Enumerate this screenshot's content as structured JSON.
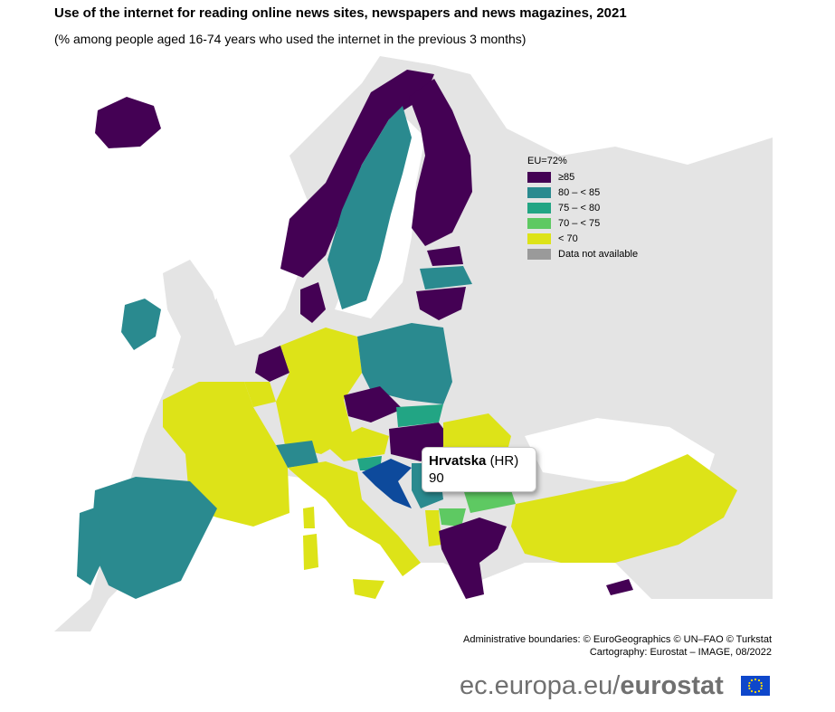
{
  "title": "Use of the internet for reading online news sites, newspapers and news magazines, 2021",
  "subtitle": "(% among people aged 16-74 years who used the internet in the previous 3 months)",
  "legend": {
    "heading": "EU=72%",
    "items": [
      {
        "label": "≥85",
        "color": "#440154"
      },
      {
        "label": "80 – < 85",
        "color": "#2a8a8f"
      },
      {
        "label": "75 – < 80",
        "color": "#22a584"
      },
      {
        "label": "70 – < 75",
        "color": "#5ec962"
      },
      {
        "label": "< 70",
        "color": "#dde318"
      },
      {
        "label": "Data not available",
        "color": "#9a9a9a"
      }
    ]
  },
  "tooltip": {
    "name": "Hrvatska",
    "code": "(HR)",
    "value": "90"
  },
  "colors": {
    "sea": "#ffffff",
    "land": "#e4e4e4",
    "selected": "#0d4a9c"
  },
  "credits": {
    "line1": "Administrative boundaries: © EuroGeographics © UN–FAO © Turkstat",
    "line2": "Cartography: Eurostat – IMAGE, 08/2022"
  },
  "brand": {
    "domain": "ec.europa.eu/",
    "name": "eurostat"
  }
}
